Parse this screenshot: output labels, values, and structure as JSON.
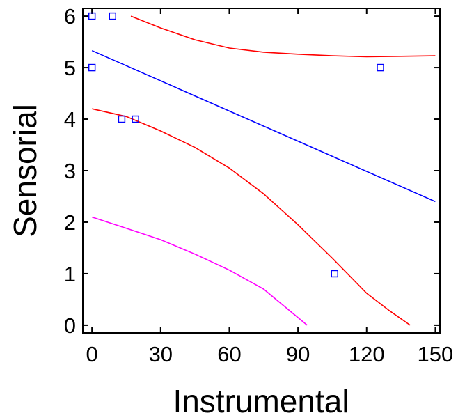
{
  "chart_data": {
    "type": "scatter",
    "title": "",
    "xlabel": "Instrumental",
    "ylabel": "Sensorial",
    "xlim": [
      -4,
      152
    ],
    "ylim": [
      -0.15,
      6.15
    ],
    "x_ticks": [
      0,
      30,
      60,
      90,
      120,
      150
    ],
    "y_ticks": [
      0,
      1,
      2,
      3,
      4,
      5,
      6
    ],
    "grid": false,
    "legend": "none",
    "points": {
      "marker": "open-square",
      "color": "#0000ff",
      "x": [
        0,
        9,
        0,
        13,
        19,
        106,
        126
      ],
      "y": [
        6,
        6,
        5,
        4,
        4,
        1,
        5
      ]
    },
    "series": [
      {
        "role": "fit",
        "color": "#0000ff",
        "x": [
          0,
          150
        ],
        "y": [
          5.33,
          2.4
        ]
      },
      {
        "role": "upper-confidence",
        "color": "#ff0000",
        "x": [
          17,
          30,
          45,
          60,
          75,
          90,
          105,
          120,
          135,
          150
        ],
        "y": [
          6.0,
          5.77,
          5.54,
          5.38,
          5.3,
          5.26,
          5.23,
          5.21,
          5.22,
          5.23
        ]
      },
      {
        "role": "lower-confidence",
        "color": "#ff0000",
        "x": [
          0,
          15,
          30,
          45,
          60,
          75,
          90,
          105,
          120,
          130,
          139
        ],
        "y": [
          4.2,
          4.05,
          3.77,
          3.45,
          3.05,
          2.55,
          1.95,
          1.3,
          0.62,
          0.28,
          0.0
        ]
      },
      {
        "role": "lower-prediction",
        "color": "#ff00ff",
        "x": [
          0,
          15,
          30,
          45,
          60,
          75,
          94
        ],
        "y": [
          2.1,
          1.88,
          1.66,
          1.38,
          1.07,
          0.7,
          0.0
        ]
      }
    ]
  }
}
